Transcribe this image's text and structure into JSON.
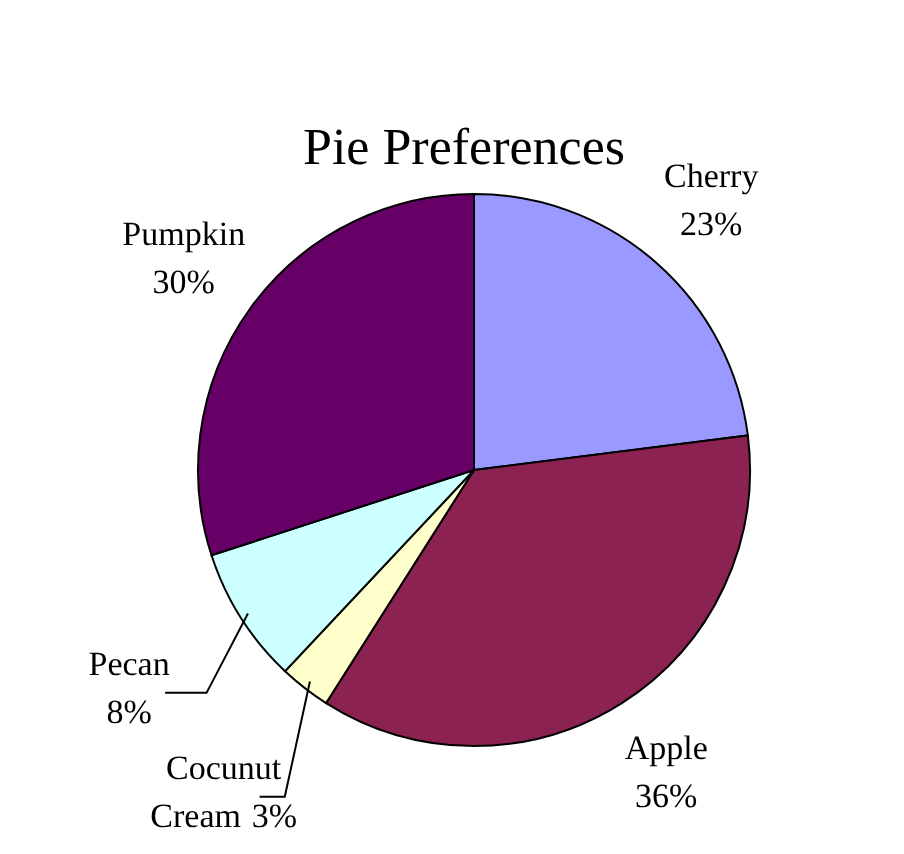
{
  "chart_data": {
    "type": "pie",
    "title": "Pie Preferences",
    "categories": [
      "Cherry",
      "Apple",
      "Cocunut Cream",
      "Pecan",
      "Pumpkin"
    ],
    "values": [
      23,
      36,
      3,
      8,
      30
    ],
    "colors": [
      "#9999ff",
      "#8b2252",
      "#ffffcc",
      "#ccffff",
      "#660066"
    ],
    "value_labels": [
      "23%",
      "36%",
      "3%",
      "8%",
      "30%"
    ]
  }
}
